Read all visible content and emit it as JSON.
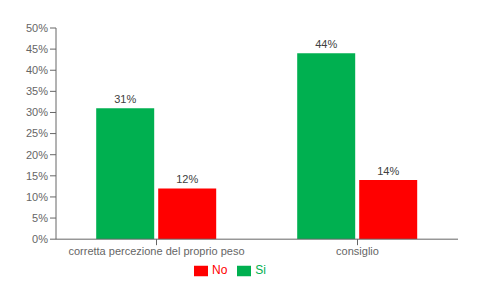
{
  "chart_data": {
    "type": "bar",
    "categories": [
      "corretta percezione del proprio peso",
      "consiglio"
    ],
    "series": [
      {
        "name": "Si",
        "color": "#00b050",
        "values": [
          31,
          44
        ],
        "value_labels": [
          "31%",
          "44%"
        ]
      },
      {
        "name": "No",
        "color": "#ff0000",
        "values": [
          12,
          14
        ],
        "value_labels": [
          "12%",
          "14%"
        ]
      }
    ],
    "ylim": [
      0,
      50
    ],
    "yticks": [
      {
        "value": 0,
        "label": "0%"
      },
      {
        "value": 5,
        "label": "5%"
      },
      {
        "value": 10,
        "label": "10%"
      },
      {
        "value": 15,
        "label": "15%"
      },
      {
        "value": 20,
        "label": "20%"
      },
      {
        "value": 25,
        "label": "25%"
      },
      {
        "value": 30,
        "label": "30%"
      },
      {
        "value": 35,
        "label": "35%"
      },
      {
        "value": 40,
        "label": "40%"
      },
      {
        "value": 45,
        "label": "45%"
      },
      {
        "value": 50,
        "label": "50%"
      }
    ],
    "grid": false,
    "legend": "bottom",
    "data_labels": true
  }
}
